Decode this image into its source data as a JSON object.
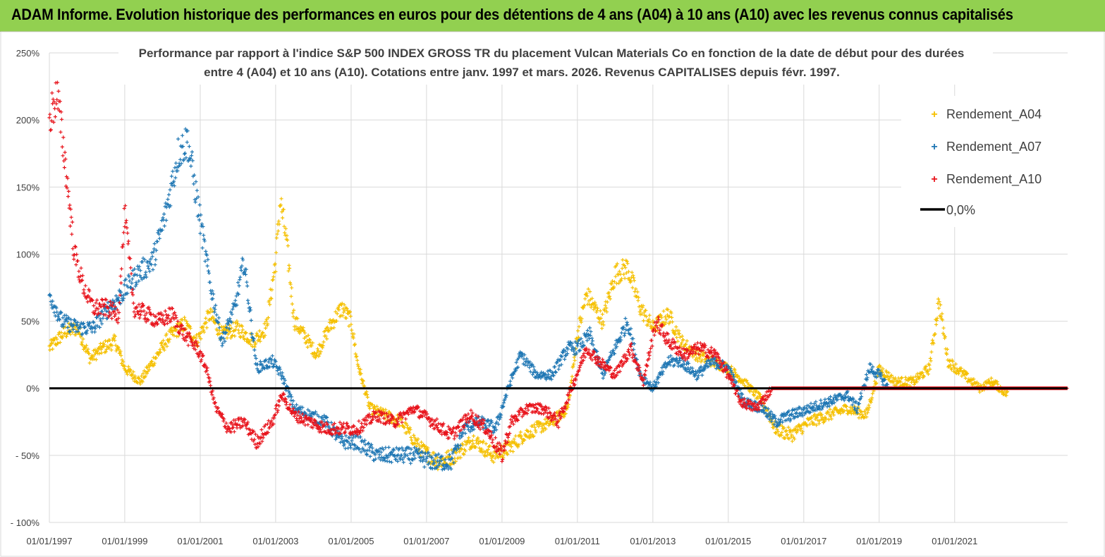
{
  "header": {
    "banner": "ADAM Informe. Evolution historique des performances en euros pour des détentions de 4 ans (A04) à 10 ans (A10) avec les revenus connus capitalisés"
  },
  "chart_data": {
    "type": "scatter",
    "title_line1": "Performance par rapport à l'indice S&P 500 INDEX GROSS TR  du placement Vulcan  Materials Co en fonction de la date de début pour des durées",
    "title_line2": "entre 4 (A04) et 10 ans (A10). Cotations entre janv. 1997 et mars. 2026. Revenus CAPITALISES depuis févr. 1997.",
    "x_axis": {
      "start": "1997-01-01",
      "end": "2023-12-31",
      "grid": true
    },
    "x_tick_labels": [
      "01/01/1997",
      "01/01/1999",
      "01/01/2001",
      "01/01/2003",
      "01/01/2005",
      "01/01/2007",
      "01/01/2009",
      "01/01/2011",
      "01/01/2013",
      "01/01/2015",
      "01/01/2017",
      "01/01/2019",
      "01/01/2021"
    ],
    "y_tick_labels": [
      "250%",
      "200%",
      "150%",
      "100%",
      "50%",
      "0%",
      "- 50%",
      "- 100%"
    ],
    "ylim": [
      -100,
      250
    ],
    "y_grid": true,
    "legend_position": "top-right",
    "legend": [
      {
        "label": "Rendement_A04",
        "color": "#f5c000",
        "marker": "plus"
      },
      {
        "label": "Rendement_A07",
        "color": "#1f77b4",
        "marker": "plus"
      },
      {
        "label": "Rendement_A10",
        "color": "#e8141c",
        "marker": "plus"
      },
      {
        "label": "0,0%",
        "color": "#000000",
        "marker": "line"
      }
    ],
    "series": [
      {
        "name": "Rendement_A04",
        "color": "#f5c000",
        "end": "2022-06-01",
        "points": [
          [
            "1997-01-01",
            30
          ],
          [
            "1997-06-01",
            42
          ],
          [
            "1997-10-01",
            45
          ],
          [
            "1998-02-01",
            22
          ],
          [
            "1998-06-01",
            30
          ],
          [
            "1998-10-01",
            35
          ],
          [
            "1999-01-01",
            15
          ],
          [
            "1999-06-01",
            5
          ],
          [
            "1999-10-01",
            20
          ],
          [
            "2000-03-01",
            38
          ],
          [
            "2000-08-01",
            48
          ],
          [
            "2000-12-01",
            35
          ],
          [
            "2001-04-01",
            55
          ],
          [
            "2001-08-01",
            40
          ],
          [
            "2002-01-01",
            45
          ],
          [
            "2002-06-01",
            35
          ],
          [
            "2002-10-01",
            45
          ],
          [
            "2003-01-01",
            95
          ],
          [
            "2003-02-15",
            140
          ],
          [
            "2003-04-15",
            110
          ],
          [
            "2003-07-01",
            50
          ],
          [
            "2003-10-01",
            40
          ],
          [
            "2004-02-01",
            25
          ],
          [
            "2004-06-01",
            45
          ],
          [
            "2004-10-01",
            60
          ],
          [
            "2005-01-01",
            50
          ],
          [
            "2005-03-01",
            20
          ],
          [
            "2005-07-01",
            -15
          ],
          [
            "2005-12-01",
            -20
          ],
          [
            "2006-05-01",
            -25
          ],
          [
            "2006-11-01",
            -45
          ],
          [
            "2007-05-01",
            -55
          ],
          [
            "2007-10-01",
            -50
          ],
          [
            "2008-04-01",
            -38
          ],
          [
            "2008-10-01",
            -50
          ],
          [
            "2009-03-01",
            -45
          ],
          [
            "2009-08-01",
            -35
          ],
          [
            "2009-12-01",
            -30
          ],
          [
            "2010-05-01",
            -25
          ],
          [
            "2010-10-01",
            -15
          ],
          [
            "2011-01-01",
            40
          ],
          [
            "2011-04-01",
            70
          ],
          [
            "2011-09-01",
            50
          ],
          [
            "2012-01-01",
            85
          ],
          [
            "2012-05-01",
            90
          ],
          [
            "2012-09-01",
            60
          ],
          [
            "2013-01-01",
            45
          ],
          [
            "2013-06-01",
            55
          ],
          [
            "2013-10-01",
            35
          ],
          [
            "2014-03-01",
            25
          ],
          [
            "2014-08-01",
            20
          ],
          [
            "2015-01-01",
            15
          ],
          [
            "2015-06-01",
            5
          ],
          [
            "2015-12-01",
            -10
          ],
          [
            "2016-04-01",
            -30
          ],
          [
            "2016-09-01",
            -35
          ],
          [
            "2017-03-01",
            -25
          ],
          [
            "2017-09-01",
            -20
          ],
          [
            "2018-03-01",
            -15
          ],
          [
            "2018-09-01",
            -20
          ],
          [
            "2019-01-01",
            15
          ],
          [
            "2019-06-01",
            5
          ],
          [
            "2019-12-01",
            5
          ],
          [
            "2020-05-01",
            15
          ],
          [
            "2020-08-01",
            65
          ],
          [
            "2020-11-01",
            20
          ],
          [
            "2021-04-01",
            10
          ],
          [
            "2021-09-01",
            0
          ],
          [
            "2022-01-01",
            5
          ],
          [
            "2022-06-01",
            -5
          ]
        ]
      },
      {
        "name": "Rendement_A07",
        "color": "#1f77b4",
        "end": "2019-04-01",
        "points": [
          [
            "1997-01-01",
            70
          ],
          [
            "1997-05-01",
            50
          ],
          [
            "1997-10-01",
            45
          ],
          [
            "1998-03-01",
            45
          ],
          [
            "1998-08-01",
            60
          ],
          [
            "1998-12-01",
            70
          ],
          [
            "1999-05-01",
            85
          ],
          [
            "1999-10-01",
            95
          ],
          [
            "2000-02-01",
            130
          ],
          [
            "2000-06-01",
            175
          ],
          [
            "2000-09-01",
            185
          ],
          [
            "2000-12-01",
            140
          ],
          [
            "2001-04-01",
            80
          ],
          [
            "2001-08-01",
            35
          ],
          [
            "2001-12-01",
            60
          ],
          [
            "2002-03-01",
            95
          ],
          [
            "2002-07-01",
            15
          ],
          [
            "2002-12-01",
            20
          ],
          [
            "2003-03-01",
            10
          ],
          [
            "2003-07-01",
            -15
          ],
          [
            "2003-12-01",
            -20
          ],
          [
            "2004-05-01",
            -25
          ],
          [
            "2004-10-01",
            -40
          ],
          [
            "2005-03-01",
            -40
          ],
          [
            "2005-09-01",
            -50
          ],
          [
            "2006-03-01",
            -50
          ],
          [
            "2006-09-01",
            -50
          ],
          [
            "2007-03-01",
            -55
          ],
          [
            "2007-09-01",
            -55
          ],
          [
            "2008-01-01",
            -30
          ],
          [
            "2008-06-01",
            -25
          ],
          [
            "2008-11-01",
            -30
          ],
          [
            "2009-03-01",
            0
          ],
          [
            "2009-07-01",
            25
          ],
          [
            "2009-12-01",
            10
          ],
          [
            "2010-05-01",
            10
          ],
          [
            "2010-10-01",
            30
          ],
          [
            "2011-01-01",
            30
          ],
          [
            "2011-05-01",
            40
          ],
          [
            "2011-09-01",
            10
          ],
          [
            "2012-01-01",
            30
          ],
          [
            "2012-05-01",
            50
          ],
          [
            "2012-09-01",
            10
          ],
          [
            "2013-01-01",
            0
          ],
          [
            "2013-06-01",
            20
          ],
          [
            "2013-10-01",
            20
          ],
          [
            "2014-03-01",
            10
          ],
          [
            "2014-08-01",
            20
          ],
          [
            "2015-01-01",
            15
          ],
          [
            "2015-06-01",
            -10
          ],
          [
            "2015-12-01",
            -15
          ],
          [
            "2016-04-01",
            -25
          ],
          [
            "2016-09-01",
            -20
          ],
          [
            "2017-03-01",
            -15
          ],
          [
            "2017-09-01",
            -10
          ],
          [
            "2018-03-01",
            -5
          ],
          [
            "2018-06-01",
            -15
          ],
          [
            "2018-10-01",
            15
          ],
          [
            "2019-01-01",
            10
          ],
          [
            "2019-04-01",
            0
          ]
        ]
      },
      {
        "name": "Rendement_A10",
        "color": "#e8141c",
        "end": "2023-12-31",
        "points": [
          [
            "1997-01-01",
            200
          ],
          [
            "1997-03-15",
            220
          ],
          [
            "1997-06-01",
            170
          ],
          [
            "1997-09-01",
            100
          ],
          [
            "1997-12-01",
            75
          ],
          [
            "1998-03-01",
            60
          ],
          [
            "1998-07-01",
            60
          ],
          [
            "1998-11-01",
            55
          ],
          [
            "1999-01-01",
            130
          ],
          [
            "1999-04-01",
            60
          ],
          [
            "1999-08-01",
            55
          ],
          [
            "1999-12-01",
            50
          ],
          [
            "2000-04-01",
            55
          ],
          [
            "2000-08-01",
            40
          ],
          [
            "2000-12-01",
            30
          ],
          [
            "2001-03-01",
            15
          ],
          [
            "2001-06-01",
            -15
          ],
          [
            "2001-10-01",
            -30
          ],
          [
            "2002-03-01",
            -25
          ],
          [
            "2002-07-01",
            -40
          ],
          [
            "2002-12-01",
            -25
          ],
          [
            "2003-03-01",
            -5
          ],
          [
            "2003-07-01",
            -20
          ],
          [
            "2003-12-01",
            -25
          ],
          [
            "2004-05-01",
            -30
          ],
          [
            "2004-10-01",
            -30
          ],
          [
            "2005-03-01",
            -30
          ],
          [
            "2005-09-01",
            -20
          ],
          [
            "2006-03-01",
            -25
          ],
          [
            "2006-09-01",
            -15
          ],
          [
            "2007-03-01",
            -25
          ],
          [
            "2007-09-01",
            -35
          ],
          [
            "2008-03-01",
            -20
          ],
          [
            "2008-08-01",
            -30
          ],
          [
            "2009-01-01",
            -50
          ],
          [
            "2009-04-01",
            -25
          ],
          [
            "2009-09-01",
            -15
          ],
          [
            "2010-02-01",
            -15
          ],
          [
            "2010-07-01",
            -25
          ],
          [
            "2010-12-01",
            5
          ],
          [
            "2011-04-01",
            30
          ],
          [
            "2011-08-01",
            20
          ],
          [
            "2012-01-01",
            10
          ],
          [
            "2012-06-01",
            30
          ],
          [
            "2012-10-01",
            5
          ],
          [
            "2013-02-01",
            50
          ],
          [
            "2013-06-01",
            35
          ],
          [
            "2013-11-01",
            25
          ],
          [
            "2014-04-01",
            30
          ],
          [
            "2014-09-01",
            25
          ],
          [
            "2015-01-01",
            10
          ],
          [
            "2015-05-01",
            -10
          ],
          [
            "2015-10-01",
            -15
          ],
          [
            "2016-03-01",
            0
          ],
          [
            "2016-12-01",
            0
          ],
          [
            "2017-12-01",
            0
          ],
          [
            "2018-12-01",
            0
          ],
          [
            "2019-12-01",
            0
          ],
          [
            "2020-12-01",
            0
          ],
          [
            "2021-12-01",
            0
          ],
          [
            "2022-12-01",
            0
          ],
          [
            "2023-12-31",
            0
          ]
        ]
      }
    ]
  }
}
